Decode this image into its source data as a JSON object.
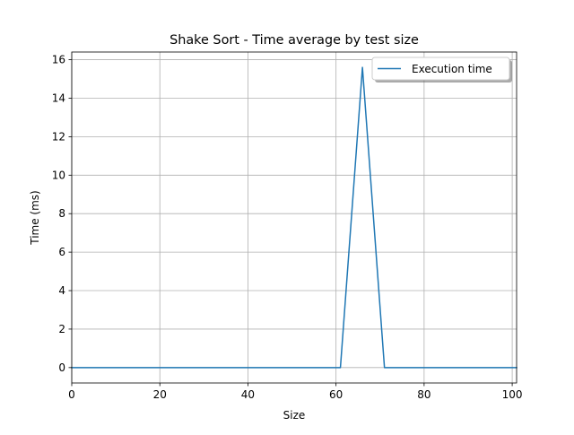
{
  "chart_data": {
    "type": "line",
    "title": "Shake Sort - Time average by test size",
    "xlabel": "Size",
    "ylabel": "Time (ms)",
    "xlim": [
      0,
      101
    ],
    "ylim": [
      -0.8,
      16.4
    ],
    "x_ticks": [
      0,
      20,
      40,
      60,
      80,
      100
    ],
    "y_ticks": [
      0,
      2,
      4,
      6,
      8,
      10,
      12,
      14,
      16
    ],
    "grid": true,
    "legend_position": "top-right",
    "series": [
      {
        "name": "Execution time",
        "color": "#1f77b4",
        "x": [
          0,
          1,
          6,
          11,
          16,
          21,
          26,
          31,
          36,
          41,
          46,
          51,
          56,
          61,
          66,
          71,
          76,
          81,
          86,
          91,
          96,
          101
        ],
        "y": [
          0,
          0,
          0,
          0,
          0,
          0,
          0,
          0,
          0,
          0,
          0,
          0,
          0,
          0,
          15.6,
          0,
          0,
          0,
          0,
          0,
          0,
          0
        ]
      }
    ]
  }
}
